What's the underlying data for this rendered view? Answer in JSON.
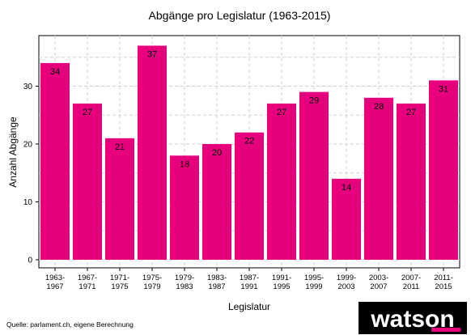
{
  "chart_data": {
    "type": "bar",
    "title": "Abgänge pro Legislatur (1963-2015)",
    "xlabel": "Legislatur",
    "ylabel": "Anzahl Abgänge",
    "ylim": [
      0,
      40
    ],
    "yticks": [
      0,
      10,
      20,
      30
    ],
    "grid": true,
    "bar_color": "#E6007E",
    "categories": [
      [
        "1963-",
        "1967"
      ],
      [
        "1967-",
        "1971"
      ],
      [
        "1971-",
        "1975"
      ],
      [
        "1975-",
        "1979"
      ],
      [
        "1979-",
        "1983"
      ],
      [
        "1983-",
        "1987"
      ],
      [
        "1987-",
        "1991"
      ],
      [
        "1991-",
        "1995"
      ],
      [
        "1995-",
        "1999"
      ],
      [
        "1999-",
        "2003"
      ],
      [
        "2003-",
        "2007"
      ],
      [
        "2007-",
        "2011"
      ],
      [
        "2011-",
        "2015"
      ]
    ],
    "values": [
      34,
      27,
      21,
      37,
      18,
      20,
      22,
      27,
      29,
      14,
      28,
      27,
      31
    ]
  },
  "source": "Quelle: parlament.ch, eigene Berechnung",
  "logo": {
    "text": "watson",
    "background": "#000000",
    "accent": "#E6007E"
  }
}
